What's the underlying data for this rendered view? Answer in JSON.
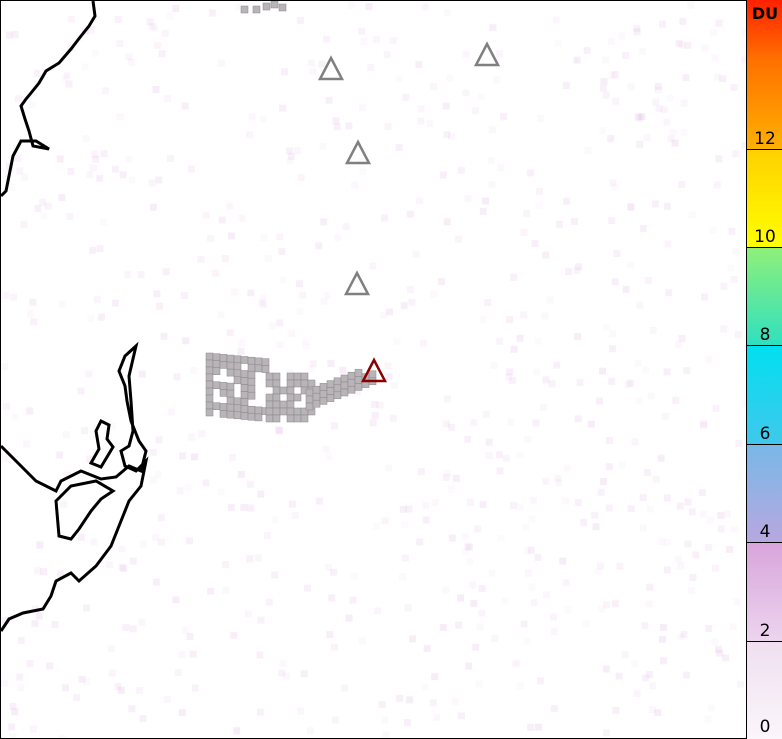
{
  "colorbar": {
    "unit": "DU",
    "ticks": [
      "0",
      "2",
      "4",
      "6",
      "8",
      "10",
      "12"
    ],
    "range": [
      0,
      15
    ]
  },
  "colors": {
    "coastline": "#000000",
    "plume_cell": "#b8b4b8",
    "volcano_marker": "#808080",
    "active_volcano_marker": "#8b0000"
  }
}
